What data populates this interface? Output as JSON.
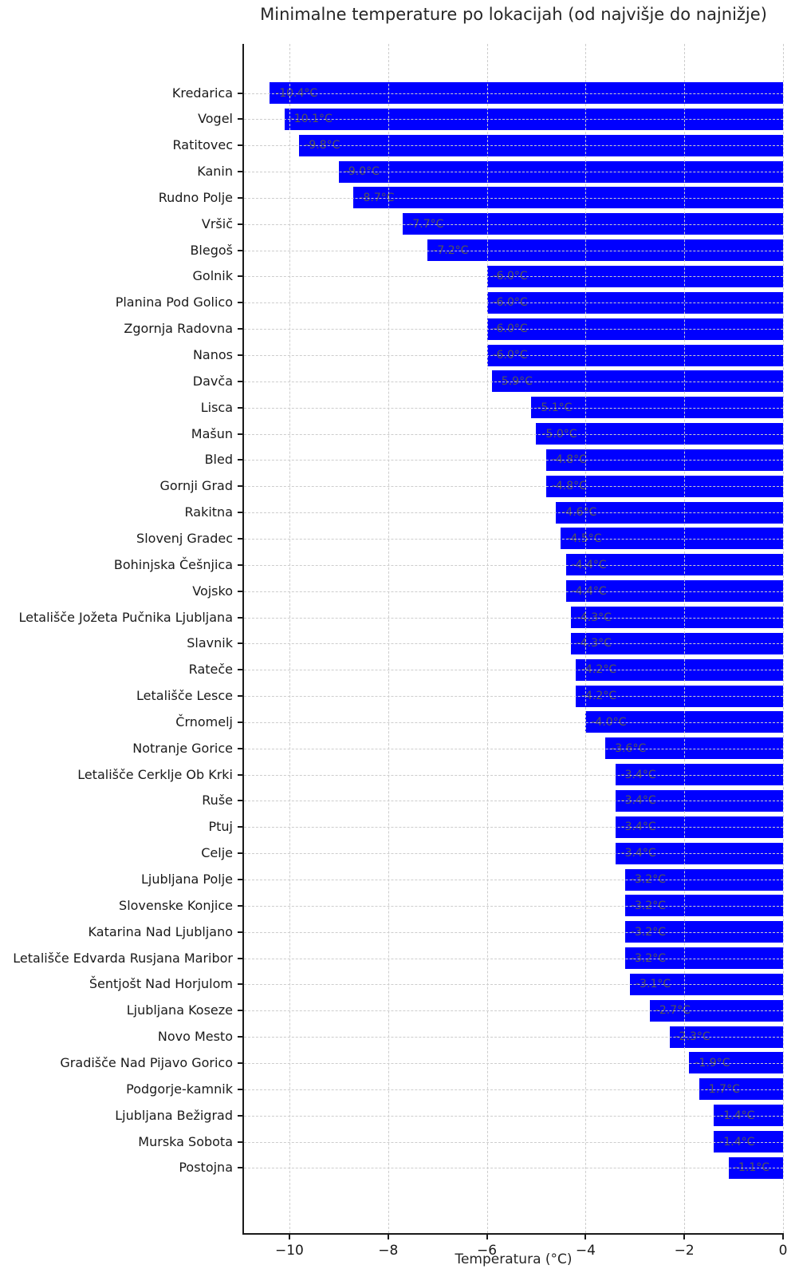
{
  "chart_data": {
    "type": "bar",
    "orientation": "horizontal",
    "title": "Minimalne temperature po lokacijah (od najvišje do najnižje)",
    "xlabel": "Temperatura (°C)",
    "ylabel": "",
    "xlim": [
      -10.92,
      0
    ],
    "grid": true,
    "legend": false,
    "bar_color": "#0000ff",
    "value_label_color": "#555555",
    "grid_color": "#cdcdcd",
    "xticks": [
      {
        "value": -10,
        "label": "−10"
      },
      {
        "value": -8,
        "label": "−8"
      },
      {
        "value": -6,
        "label": "−6"
      },
      {
        "value": -4,
        "label": "−4"
      },
      {
        "value": -2,
        "label": "−2"
      },
      {
        "value": 0,
        "label": "0"
      }
    ],
    "categories": [
      "Kredarica",
      "Vogel",
      "Ratitovec",
      "Kanin",
      "Rudno Polje",
      "Vršič",
      "Blegoš",
      "Golnik",
      "Planina Pod Golico",
      "Zgornja Radovna",
      "Nanos",
      "Davča",
      "Lisca",
      "Mašun",
      "Bled",
      "Gornji Grad",
      "Rakitna",
      "Slovenj Gradec",
      "Bohinjska Češnjica",
      "Vojsko",
      "Letališče Jožeta Pučnika Ljubljana",
      "Slavnik",
      "Rateče",
      "Letališče Lesce",
      "Črnomelj",
      "Notranje Gorice",
      "Letališče Cerklje Ob Krki",
      "Ruše",
      "Ptuj",
      "Celje",
      "Ljubljana Polje",
      "Slovenske Konjice",
      "Katarina Nad Ljubljano",
      "Letališče Edvarda Rusjana Maribor",
      "Šentjošt Nad Horjulom",
      "Ljubljana Koseze",
      "Novo Mesto",
      "Gradišče Nad Pijavo Gorico",
      "Podgorje-kamnik",
      "Ljubljana Bežigrad",
      "Murska Sobota",
      "Postojna"
    ],
    "values": [
      -10.4,
      -10.1,
      -9.8,
      -9.0,
      -8.7,
      -7.7,
      -7.2,
      -6.0,
      -6.0,
      -6.0,
      -6.0,
      -5.9,
      -5.1,
      -5.0,
      -4.8,
      -4.8,
      -4.6,
      -4.5,
      -4.4,
      -4.4,
      -4.3,
      -4.3,
      -4.2,
      -4.2,
      -4.0,
      -3.6,
      -3.4,
      -3.4,
      -3.4,
      -3.4,
      -3.2,
      -3.2,
      -3.2,
      -3.2,
      -3.1,
      -2.7,
      -2.3,
      -1.9,
      -1.7,
      -1.4,
      -1.4,
      -1.1
    ],
    "value_labels": [
      "-10.4°C",
      "-10.1°C",
      "-9.8°C",
      "-9.0°C",
      "-8.7°C",
      "-7.7°C",
      "-7.2°C",
      "-6.0°C",
      "-6.0°C",
      "-6.0°C",
      "-6.0°C",
      "-5.9°C",
      "-5.1°C",
      "-5.0°C",
      "-4.8°C",
      "-4.8°C",
      "-4.6°C",
      "-4.5°C",
      "-4.4°C",
      "-4.4°C",
      "-4.3°C",
      "-4.3°C",
      "-4.2°C",
      "-4.2°C",
      "-4.0°C",
      "-3.6°C",
      "-3.4°C",
      "-3.4°C",
      "-3.4°C",
      "-3.4°C",
      "-3.2°C",
      "-3.2°C",
      "-3.2°C",
      "-3.2°C",
      "-3.1°C",
      "-2.7°C",
      "-2.3°C",
      "-1.9°C",
      "-1.7°C",
      "-1.4°C",
      "-1.4°C",
      "-1.1°C"
    ]
  }
}
